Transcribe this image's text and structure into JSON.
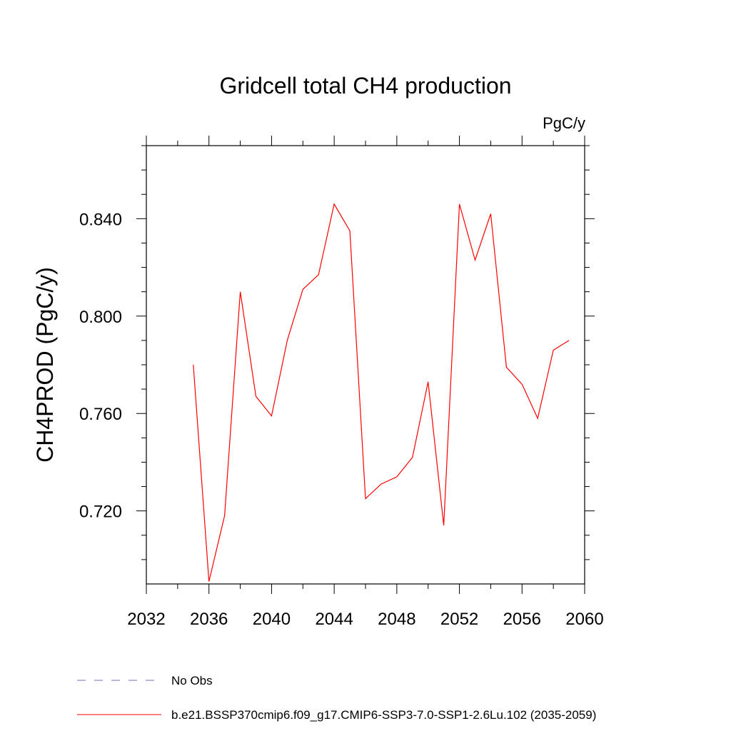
{
  "chart_data": {
    "type": "line",
    "title": "Gridcell total CH4 production",
    "units_label": "PgC/y",
    "xlabel": "",
    "ylabel": "CH4PROD  (PgC/y)",
    "xlim": [
      2032,
      2060
    ],
    "ylim": [
      0.69,
      0.87
    ],
    "xticks": [
      2032,
      2036,
      2040,
      2044,
      2048,
      2052,
      2056,
      2060
    ],
    "xtick_labels": [
      "2032",
      "2036",
      "2040",
      "2044",
      "2048",
      "2052",
      "2056",
      "2060"
    ],
    "yticks": [
      0.72,
      0.76,
      0.8,
      0.84
    ],
    "ytick_labels": [
      "0.720",
      "0.760",
      "0.800",
      "0.840"
    ],
    "grid": false,
    "legend_position": "bottom",
    "series": [
      {
        "name": "No Obs",
        "color": "#7b68b0",
        "dash": true,
        "x": [],
        "y": []
      },
      {
        "name": "b.e21.BSSP370cmip6.f09_g17.CMIP6-SSP3-7.0-SSP1-2.6Lu.102 (2035-2059)",
        "color": "#ff0000",
        "dash": false,
        "x": [
          2035,
          2036,
          2037,
          2038,
          2039,
          2040,
          2041,
          2042,
          2043,
          2044,
          2045,
          2046,
          2047,
          2048,
          2049,
          2050,
          2051,
          2052,
          2053,
          2054,
          2055,
          2056,
          2057,
          2058,
          2059
        ],
        "y": [
          0.78,
          0.691,
          0.718,
          0.81,
          0.767,
          0.759,
          0.79,
          0.811,
          0.817,
          0.846,
          0.835,
          0.725,
          0.731,
          0.734,
          0.742,
          0.773,
          0.714,
          0.846,
          0.823,
          0.842,
          0.779,
          0.772,
          0.758,
          0.786,
          0.79
        ]
      }
    ]
  }
}
